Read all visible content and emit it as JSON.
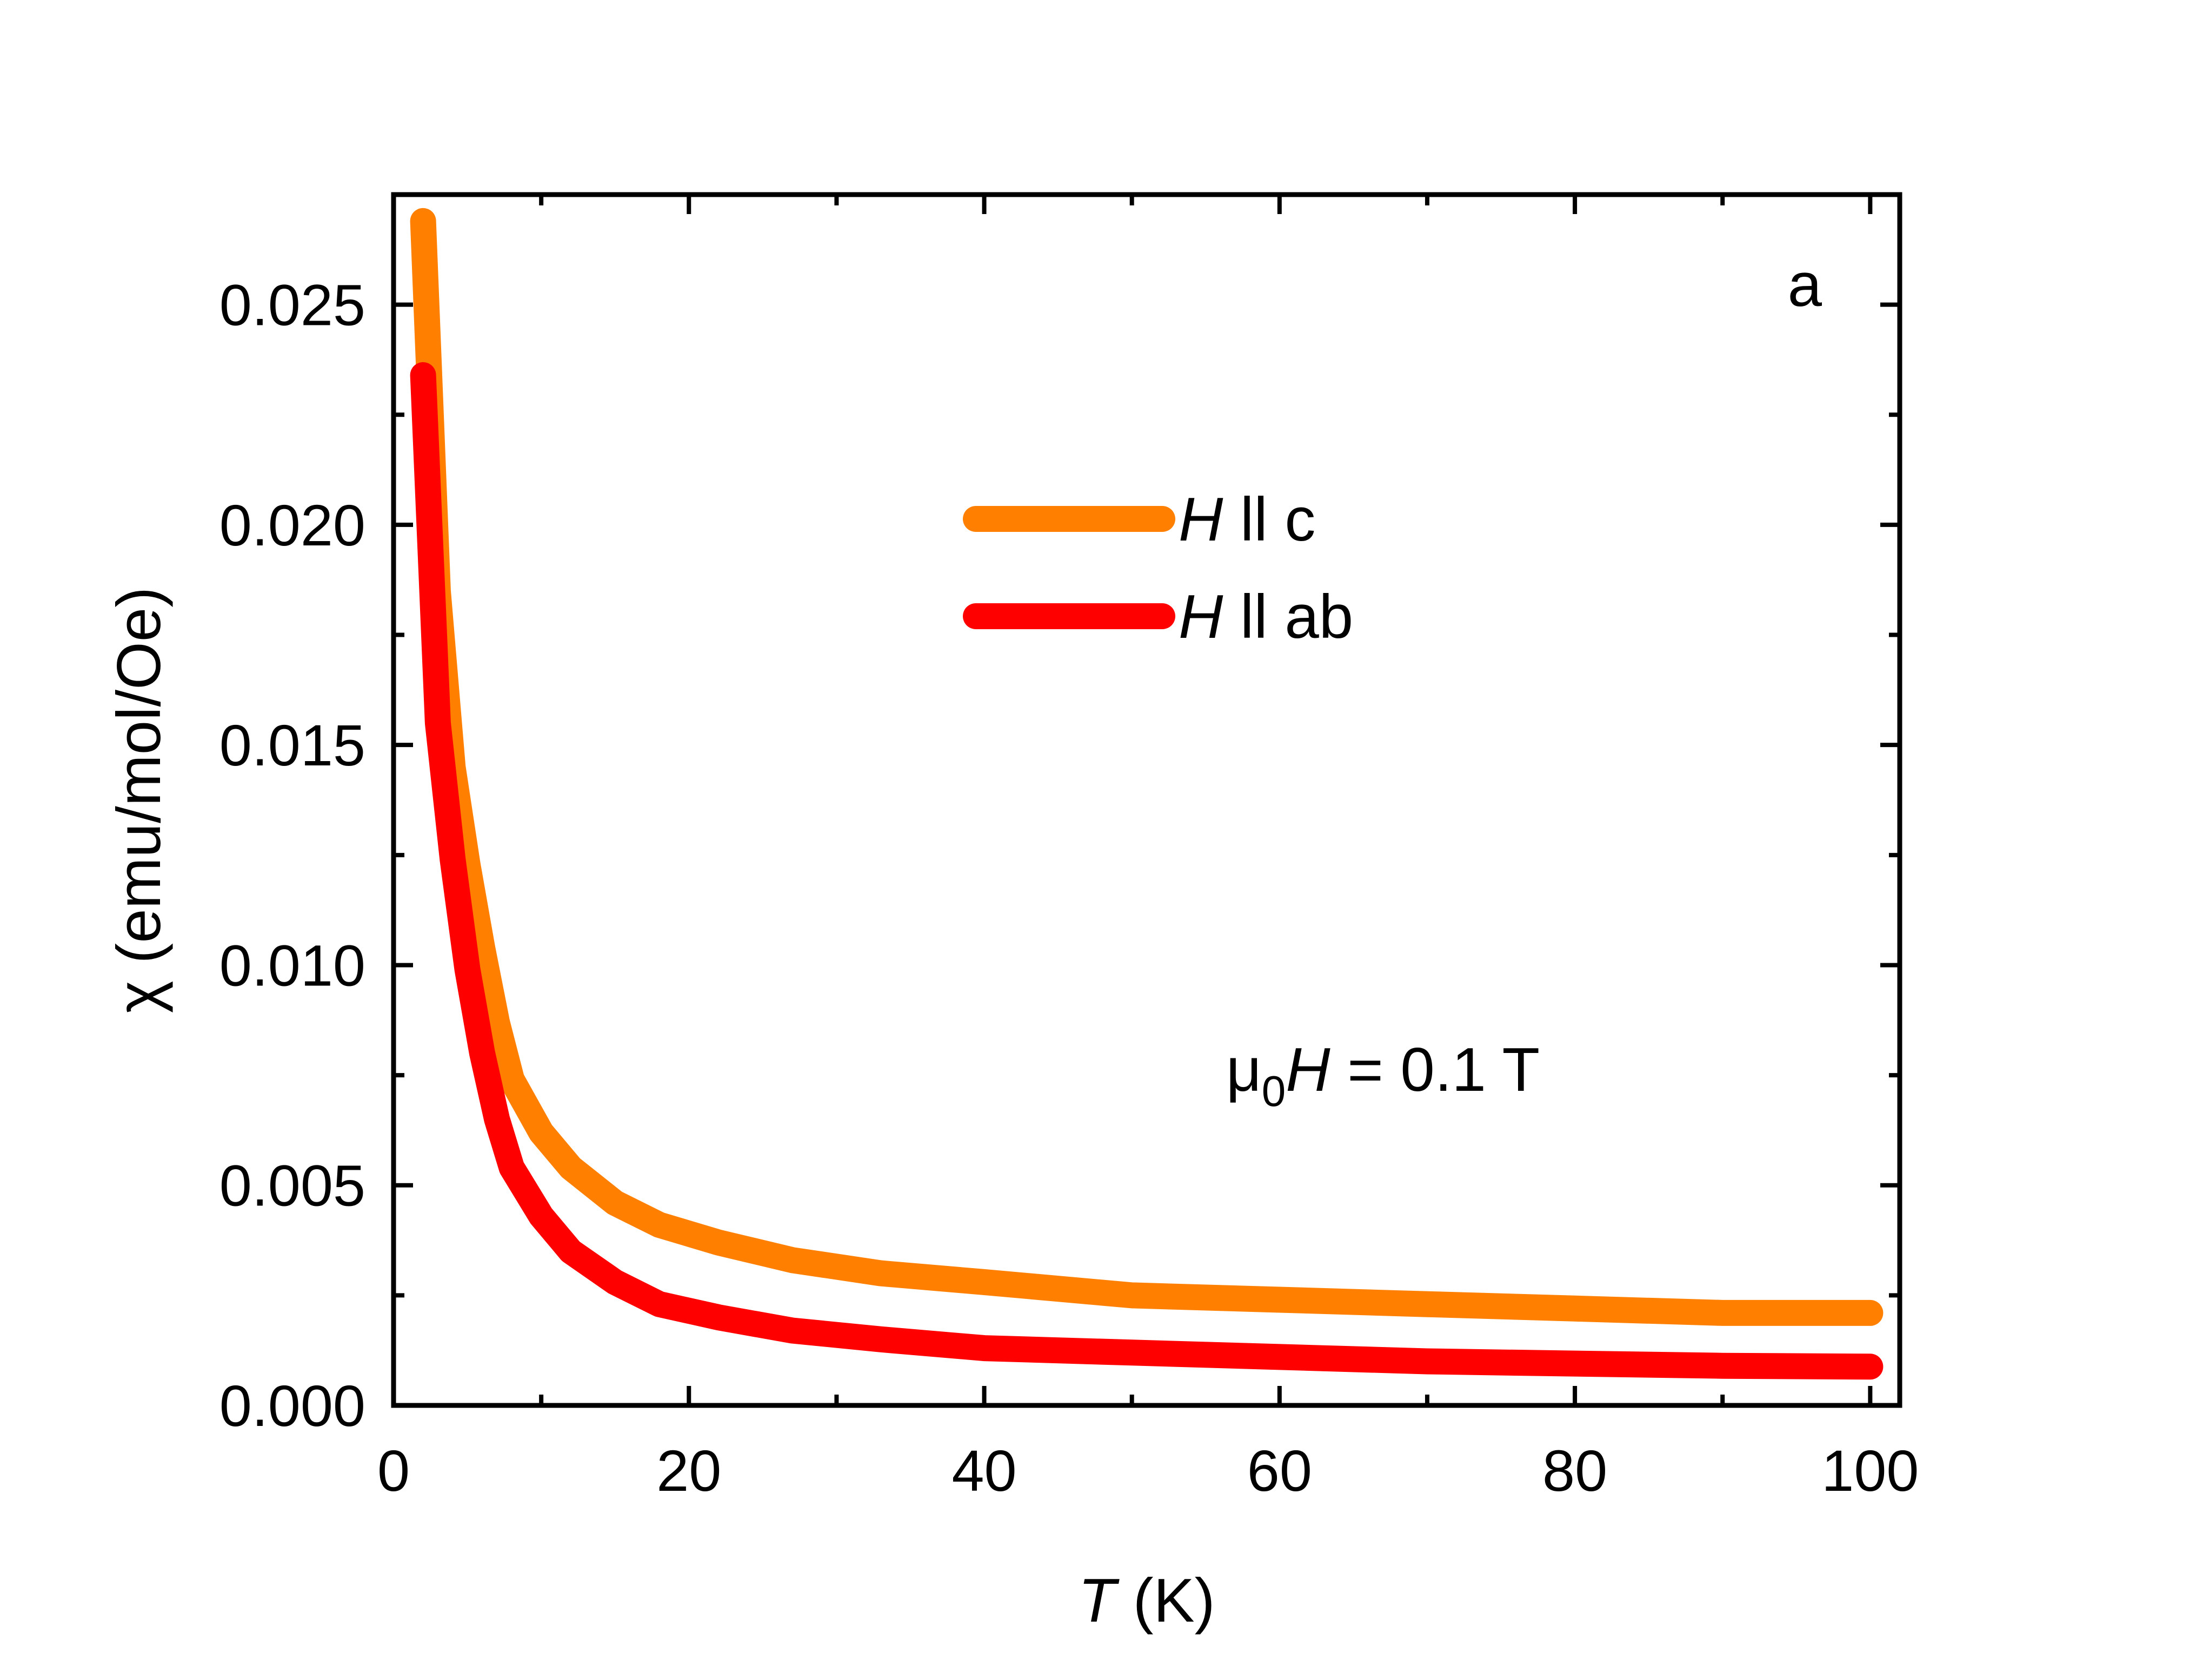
{
  "chart_data": {
    "type": "line",
    "panel_label": "a",
    "xlabel": {
      "symbol": "T",
      "unit": " (K)"
    },
    "ylabel": "χ (emu/mol/Oe)",
    "xlim": [
      0,
      102
    ],
    "ylim": [
      0,
      0.0275
    ],
    "x_ticks": [
      0,
      20,
      40,
      60,
      80,
      100
    ],
    "x_tick_labels": [
      "0",
      "20",
      "40",
      "60",
      "80",
      "100"
    ],
    "x_minor_ticks": [
      10,
      30,
      50,
      70,
      90
    ],
    "y_ticks": [
      0,
      0.005,
      0.01,
      0.015,
      0.02,
      0.025
    ],
    "y_tick_labels": [
      "0.000",
      "0.005",
      "0.010",
      "0.015",
      "0.020",
      "0.025"
    ],
    "y_minor_ticks": [
      0.0025,
      0.0075,
      0.0125,
      0.0175,
      0.0225
    ],
    "annotation": {
      "prefix": "μ",
      "subscript": "0",
      "symbol": "H",
      "suffix": " = 0.1 T"
    },
    "legend_position": "upper-center",
    "series": [
      {
        "name": "H || c",
        "legend_symbol": "H",
        "legend_text": " ll c",
        "color": "#FF8000",
        "x": [
          2,
          3,
          4,
          5,
          6,
          7,
          8,
          10,
          12,
          15,
          18,
          22,
          27,
          33,
          40,
          50,
          60,
          70,
          80,
          90,
          100
        ],
        "y": [
          0.0269,
          0.0185,
          0.0145,
          0.0123,
          0.0104,
          0.0087,
          0.0074,
          0.0062,
          0.0054,
          0.0046,
          0.0041,
          0.0037,
          0.0033,
          0.003,
          0.0028,
          0.0025,
          0.0024,
          0.0023,
          0.0022,
          0.0021,
          0.0021
        ]
      },
      {
        "name": "H || ab",
        "legend_symbol": "H",
        "legend_text": " ll ab",
        "color": "#FF0000",
        "x": [
          2,
          3,
          4,
          5,
          6,
          7,
          8,
          10,
          12,
          15,
          18,
          22,
          27,
          33,
          40,
          50,
          60,
          70,
          80,
          90,
          100
        ],
        "y": [
          0.0234,
          0.0155,
          0.0124,
          0.0099,
          0.008,
          0.0065,
          0.0054,
          0.0043,
          0.0035,
          0.0028,
          0.0023,
          0.002,
          0.0017,
          0.0015,
          0.0013,
          0.0012,
          0.0011,
          0.001,
          0.00095,
          0.0009,
          0.00088
        ]
      }
    ]
  }
}
